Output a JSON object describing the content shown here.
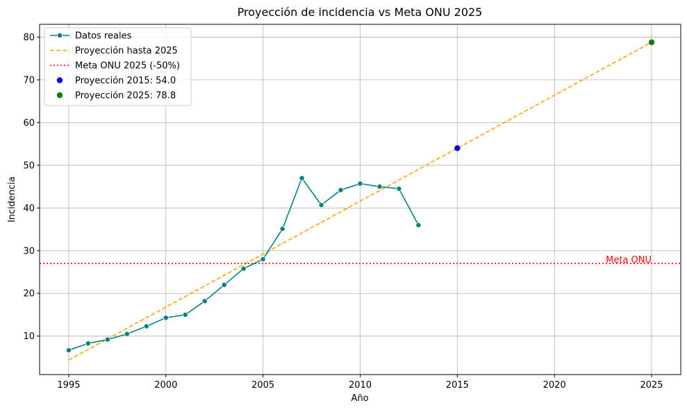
{
  "chart_data": {
    "type": "line",
    "title": "Proyección de incidencia vs Meta ONU 2025",
    "xlabel": "Año",
    "ylabel": "Incidencia",
    "xlim": [
      1993.5,
      2026.5
    ],
    "ylim": [
      1,
      83
    ],
    "xticks": [
      1995,
      2000,
      2005,
      2010,
      2015,
      2020,
      2025
    ],
    "yticks": [
      10,
      20,
      30,
      40,
      50,
      60,
      70,
      80
    ],
    "grid": true,
    "legend_position": "top-left",
    "series": [
      {
        "name": "Datos reales",
        "style": "line-markers",
        "color": "#008080",
        "x": [
          1995,
          1996,
          1997,
          1998,
          1999,
          2000,
          2001,
          2002,
          2003,
          2004,
          2005,
          2006,
          2007,
          2008,
          2009,
          2010,
          2011,
          2012,
          2013
        ],
        "y": [
          6.7,
          8.3,
          9.2,
          10.5,
          12.3,
          14.3,
          15.0,
          18.2,
          22.0,
          25.8,
          28.0,
          35.1,
          47.0,
          40.7,
          44.2,
          45.7,
          45.0,
          44.5,
          36.0
        ]
      },
      {
        "name": "Proyección hasta 2025",
        "style": "dashed",
        "color": "#FFA500",
        "x": [
          1995,
          2025
        ],
        "y": [
          4.4,
          78.8
        ]
      },
      {
        "name": "Meta ONU 2025 (-50%)",
        "style": "dotted-hline",
        "color": "#FF0000",
        "y": 27.0
      },
      {
        "name": "Proyección 2015: 54.0",
        "style": "scatter",
        "color": "#0000FF",
        "x": [
          2015
        ],
        "y": [
          54.0
        ]
      },
      {
        "name": "Proyección 2025: 78.8",
        "style": "scatter",
        "color": "#008000",
        "x": [
          2025
        ],
        "y": [
          78.8
        ]
      }
    ],
    "annotations": [
      {
        "text": "Meta ONU",
        "x": 2025,
        "y": 27.0,
        "color": "#FF0000"
      }
    ]
  }
}
